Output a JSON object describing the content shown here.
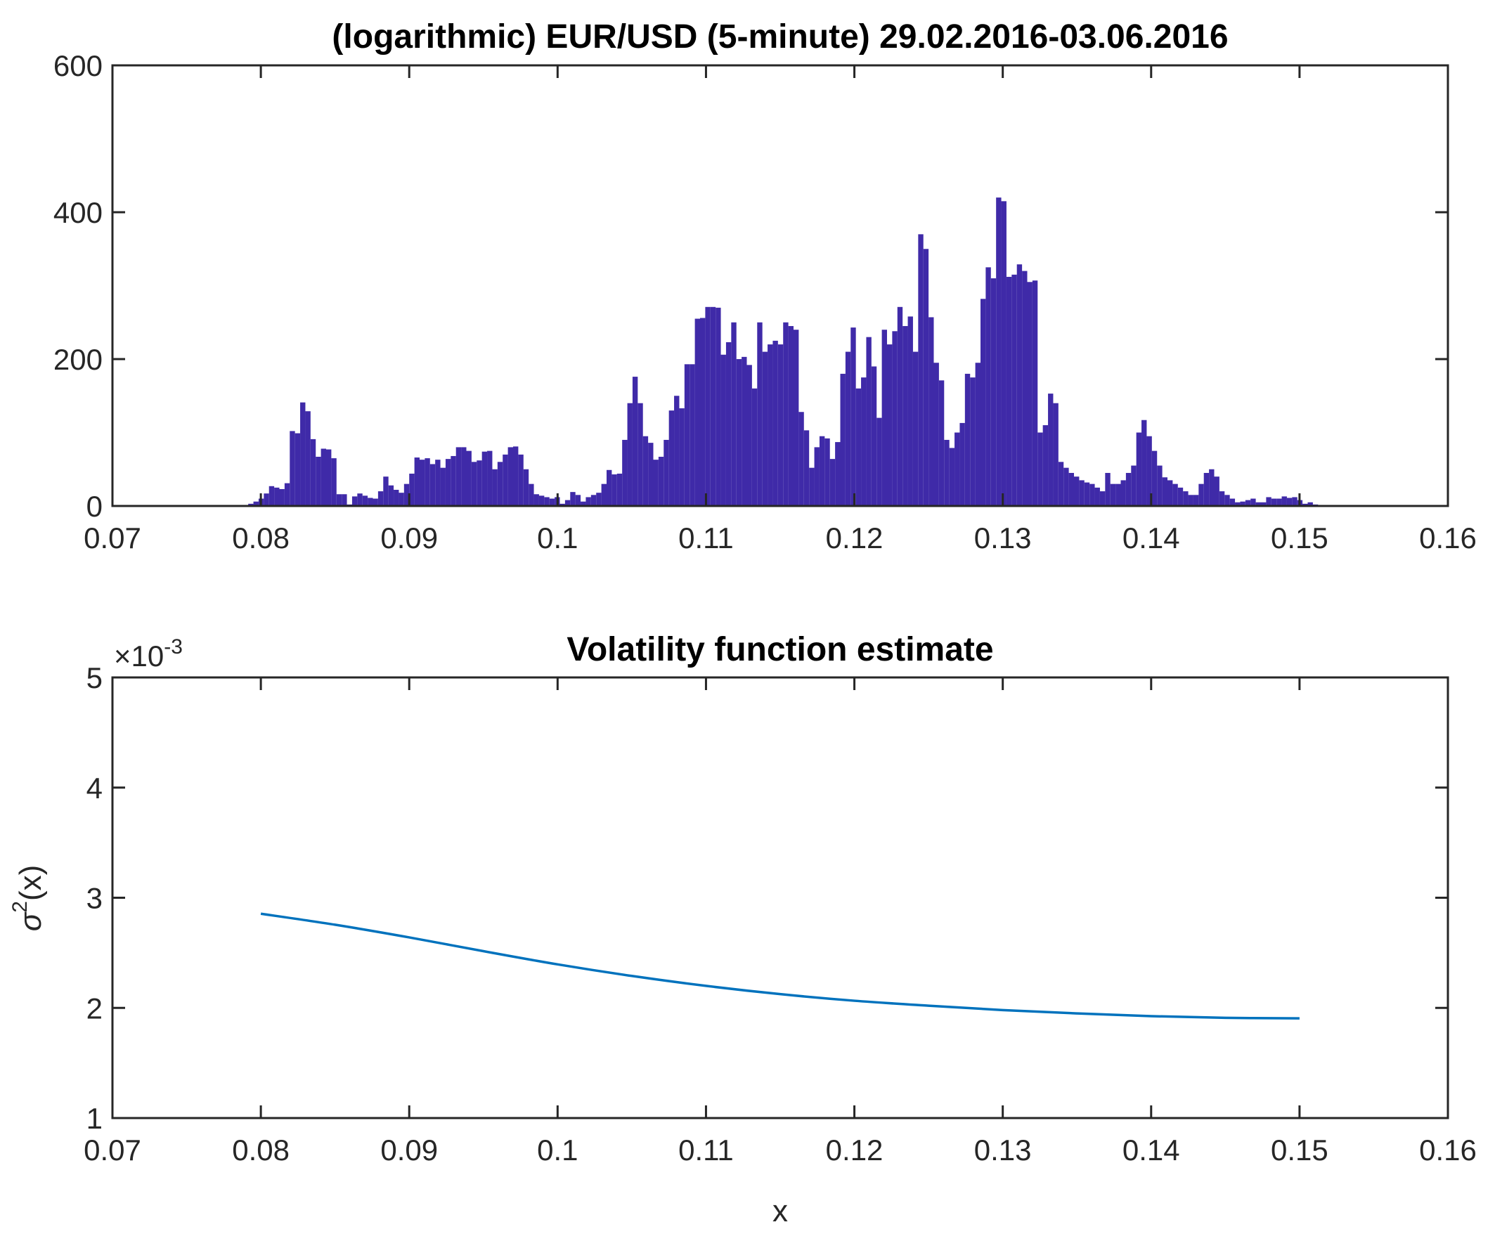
{
  "chart_data": [
    {
      "type": "bar",
      "title": "(logarithmic) EUR/USD (5-minute) 29.02.2016-03.06.2016",
      "xlabel": "",
      "ylabel": "",
      "xlim": [
        0.07,
        0.16
      ],
      "ylim": [
        0,
        600
      ],
      "xticks": [
        "0.07",
        "0.08",
        "0.09",
        "0.1",
        "0.11",
        "0.12",
        "0.13",
        "0.14",
        "0.15",
        "0.16"
      ],
      "yticks": [
        "0",
        "200",
        "400",
        "600"
      ],
      "bar_color": "#3f2aa8",
      "bin_start": 0.0788,
      "bin_width": 0.00035,
      "values": [
        1,
        3,
        6,
        10,
        17,
        27,
        25,
        23,
        31,
        102,
        99,
        141,
        129,
        91,
        67,
        78,
        77,
        65,
        16,
        16,
        2,
        13,
        17,
        14,
        11,
        10,
        20,
        40,
        28,
        22,
        18,
        30,
        44,
        66,
        63,
        65,
        57,
        63,
        52,
        64,
        68,
        80,
        80,
        75,
        60,
        62,
        74,
        75,
        50,
        60,
        70,
        80,
        81,
        70,
        50,
        30,
        16,
        14,
        12,
        10,
        12,
        3,
        8,
        19,
        15,
        6,
        12,
        15,
        18,
        30,
        49,
        43,
        44,
        90,
        140,
        176,
        140,
        95,
        86,
        63,
        67,
        90,
        130,
        150,
        133,
        193,
        193,
        255,
        256,
        271,
        271,
        270,
        206,
        223,
        250,
        200,
        203,
        192,
        160,
        250,
        210,
        220,
        225,
        220,
        250,
        245,
        240,
        128,
        103,
        52,
        80,
        95,
        92,
        64,
        87,
        180,
        210,
        243,
        160,
        175,
        230,
        190,
        120,
        240,
        220,
        238,
        271,
        245,
        258,
        210,
        370,
        350,
        257,
        195,
        171,
        90,
        79,
        100,
        113,
        180,
        175,
        195,
        282,
        325,
        310,
        420,
        415,
        312,
        315,
        329,
        320,
        305,
        307,
        100,
        110,
        153,
        140,
        60,
        52,
        45,
        40,
        35,
        32,
        30,
        25,
        20,
        45,
        30,
        30,
        35,
        45,
        55,
        100,
        117,
        95,
        75,
        55,
        39,
        35,
        30,
        25,
        20,
        15,
        15,
        30,
        45,
        50,
        40,
        20,
        15,
        10,
        5,
        6,
        8,
        10,
        5,
        5,
        12,
        10,
        10,
        13,
        11,
        12,
        8,
        3,
        5,
        2
      ]
    },
    {
      "type": "line",
      "title": "Volatility function estimate",
      "xlabel": "x",
      "ylabel_base": "σ",
      "ylabel_sup": "2",
      "ylabel_rest": "(x)",
      "xlim": [
        0.07,
        0.16
      ],
      "ylim": [
        0.001,
        0.005
      ],
      "xticks": [
        "0.07",
        "0.08",
        "0.09",
        "0.1",
        "0.11",
        "0.12",
        "0.13",
        "0.14",
        "0.15",
        "0.16"
      ],
      "yticks": [
        "1",
        "2",
        "3",
        "4",
        "5"
      ],
      "exponent_label": "×10",
      "exponent_sup": "-3",
      "line_color": "#0072bd",
      "x": [
        0.08,
        0.085,
        0.09,
        0.095,
        0.1,
        0.105,
        0.11,
        0.115,
        0.12,
        0.125,
        0.13,
        0.135,
        0.14,
        0.145,
        0.15
      ],
      "y": [
        0.002855,
        0.002755,
        0.00264,
        0.002515,
        0.002395,
        0.00229,
        0.0022,
        0.002125,
        0.002065,
        0.00202,
        0.00198,
        0.00195,
        0.001925,
        0.00191,
        0.001905
      ]
    }
  ]
}
